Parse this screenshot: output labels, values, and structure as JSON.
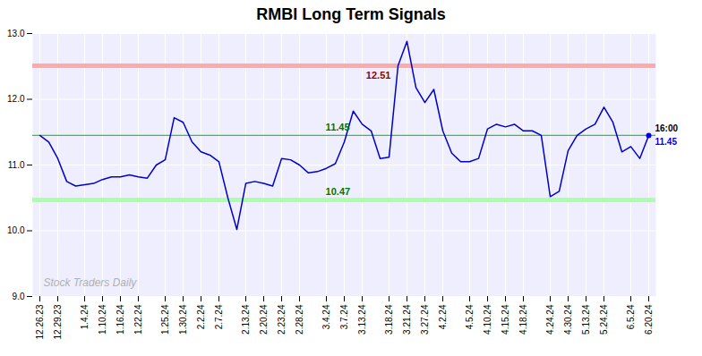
{
  "chart_data": {
    "type": "line",
    "title": "RMBI Long Term Signals",
    "categories": [
      "12.26.23",
      null,
      "12.29.23",
      null,
      null,
      "1.4.24",
      null,
      "1.10.24",
      null,
      "1.16.24",
      null,
      "1.22.24",
      null,
      null,
      "1.25.24",
      null,
      "1.30.24",
      null,
      "2.2.24",
      null,
      "2.7.24",
      null,
      null,
      "2.13.24",
      null,
      "2.20.24",
      null,
      "2.23.24",
      null,
      "2.28.24",
      null,
      null,
      "3.4.24",
      null,
      "3.7.24",
      null,
      "3.13.24",
      null,
      null,
      "3.18.24",
      null,
      "3.21.24",
      null,
      "3.27.24",
      null,
      "4.2.24",
      null,
      null,
      "4.5.24",
      null,
      "4.10.24",
      null,
      "4.15.24",
      null,
      "4.18.24",
      null,
      null,
      "4.24.24",
      null,
      "4.30.24",
      null,
      "5.13.24",
      null,
      "5.24.24",
      null,
      null,
      "6.5.24",
      null,
      "6.20.24"
    ],
    "values": [
      11.45,
      11.35,
      11.1,
      10.75,
      10.68,
      10.7,
      10.72,
      10.78,
      10.82,
      10.82,
      10.85,
      10.82,
      10.8,
      11.0,
      11.08,
      11.72,
      11.65,
      11.35,
      11.2,
      11.15,
      11.05,
      10.5,
      10.02,
      10.72,
      10.75,
      10.72,
      10.68,
      11.1,
      11.08,
      11.0,
      10.88,
      10.9,
      10.95,
      11.02,
      11.35,
      11.82,
      11.62,
      11.52,
      11.1,
      11.12,
      12.51,
      12.88,
      12.18,
      11.95,
      12.15,
      11.52,
      11.18,
      11.05,
      11.05,
      11.1,
      11.55,
      11.62,
      11.58,
      11.62,
      11.52,
      11.52,
      11.45,
      10.52,
      10.6,
      11.22,
      11.45,
      11.55,
      11.62,
      11.88,
      11.65,
      11.2,
      11.28,
      11.1,
      11.45
    ],
    "color": "#0000cc",
    "ylim": [
      9,
      13
    ],
    "yticks": [
      9,
      10,
      11,
      12,
      13
    ],
    "grid": true,
    "background": "#eeeeff",
    "bands": [
      {
        "value": 12.51,
        "color": "#ffaaaa",
        "label": "12.51",
        "label_color": "#990000"
      },
      {
        "value": 10.47,
        "color": "#aaffaa",
        "label": "10.47",
        "label_color": "#007700"
      }
    ],
    "mid_line": {
      "value": 11.45,
      "color": "#00cc00",
      "label": "11.45",
      "label_color": "#007700"
    },
    "end_point": {
      "marker": "circle",
      "color": "#0000ee",
      "time_label": "16:00",
      "price_label": "11.45"
    },
    "watermark": {
      "text": "Stock Traders Daily",
      "color": "#b0b0b0"
    }
  }
}
